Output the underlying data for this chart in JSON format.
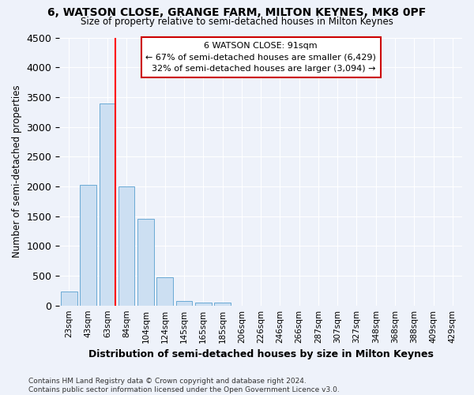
{
  "title_line1": "6, WATSON CLOSE, GRANGE FARM, MILTON KEYNES, MK8 0PF",
  "title_line2": "Size of property relative to semi-detached houses in Milton Keynes",
  "xlabel": "Distribution of semi-detached houses by size in Milton Keynes",
  "ylabel": "Number of semi-detached properties",
  "footnote": "Contains HM Land Registry data © Crown copyright and database right 2024.\nContains public sector information licensed under the Open Government Licence v3.0.",
  "bar_labels": [
    "23sqm",
    "43sqm",
    "63sqm",
    "84sqm",
    "104sqm",
    "124sqm",
    "145sqm",
    "165sqm",
    "185sqm",
    "206sqm",
    "226sqm",
    "246sqm",
    "266sqm",
    "287sqm",
    "307sqm",
    "327sqm",
    "348sqm",
    "368sqm",
    "388sqm",
    "409sqm",
    "429sqm"
  ],
  "bar_values": [
    230,
    2020,
    3390,
    2000,
    1460,
    470,
    80,
    55,
    45,
    0,
    0,
    0,
    0,
    0,
    0,
    0,
    0,
    0,
    0,
    0,
    0
  ],
  "bar_color": "#ccdff2",
  "bar_edge_color": "#6aaad4",
  "ylim": [
    0,
    4500
  ],
  "yticks": [
    0,
    500,
    1000,
    1500,
    2000,
    2500,
    3000,
    3500,
    4000,
    4500
  ],
  "property_label": "6 WATSON CLOSE: 91sqm",
  "pct_smaller": 67,
  "count_smaller": 6429,
  "pct_larger": 32,
  "count_larger": 3094,
  "vline_bar_index": 2,
  "bg_color": "#eef2fa",
  "grid_color": "#ffffff"
}
